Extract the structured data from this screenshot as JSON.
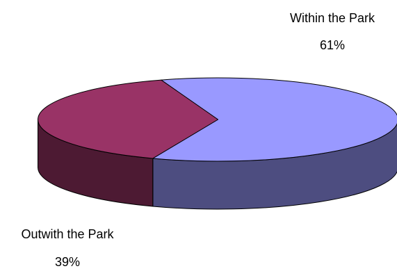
{
  "chart_data": {
    "type": "pie",
    "style": "3d",
    "slices": [
      {
        "label": "Within the  Park",
        "value": 61,
        "value_label": "61%",
        "color": "#9999FF",
        "side_color": "#4D4D80"
      },
      {
        "label": "Outwith the Park",
        "value": 39,
        "value_label": "39%",
        "color": "#993366",
        "side_color": "#4D1A33"
      }
    ],
    "legend": "none"
  }
}
